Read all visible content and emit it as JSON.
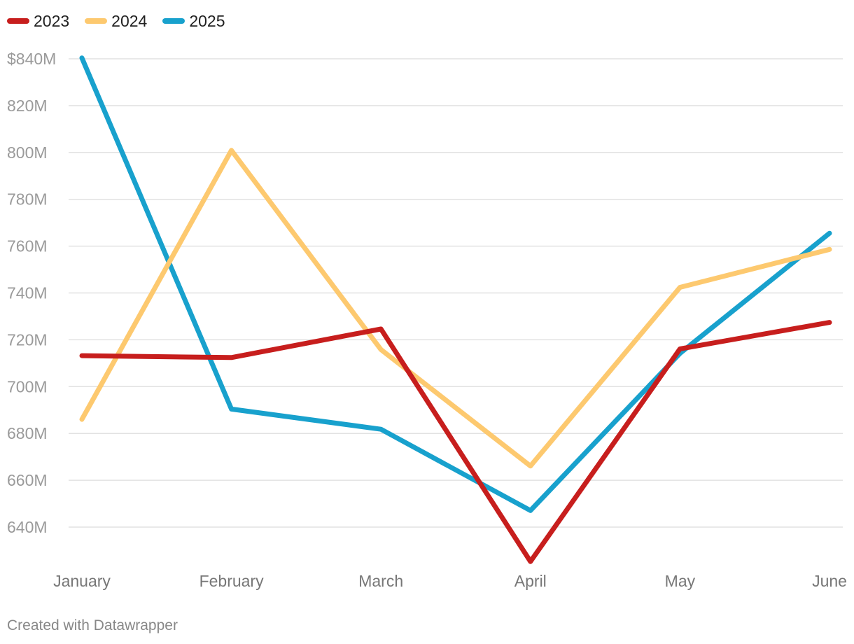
{
  "chart_data": {
    "type": "line",
    "title": "",
    "xlabel": "",
    "ylabel": "",
    "categories": [
      "January",
      "February",
      "March",
      "April",
      "May",
      "June"
    ],
    "ylim": [
      625,
      840
    ],
    "yticks": [
      840,
      820,
      800,
      780,
      760,
      740,
      720,
      700,
      680,
      660,
      640
    ],
    "ytick_labels": [
      "$840M",
      "820M",
      "800M",
      "780M",
      "760M",
      "740M",
      "720M",
      "700M",
      "680M",
      "660M",
      "640M"
    ],
    "grid": true,
    "legend_position": "top-left",
    "series": [
      {
        "name": "2023",
        "color": "#c71e1d",
        "values": [
          713.2,
          712.4,
          724.6,
          625.3,
          716.1,
          727.4
        ]
      },
      {
        "name": "2024",
        "color": "#fdc96f",
        "values": [
          686.0,
          800.9,
          715.8,
          666.1,
          742.4,
          758.6
        ]
      },
      {
        "name": "2025",
        "color": "#18a1cd",
        "values": [
          840.4,
          690.4,
          681.8,
          647.1,
          714.2,
          765.5
        ]
      }
    ]
  },
  "footer": {
    "credit": "Created with Datawrapper"
  }
}
